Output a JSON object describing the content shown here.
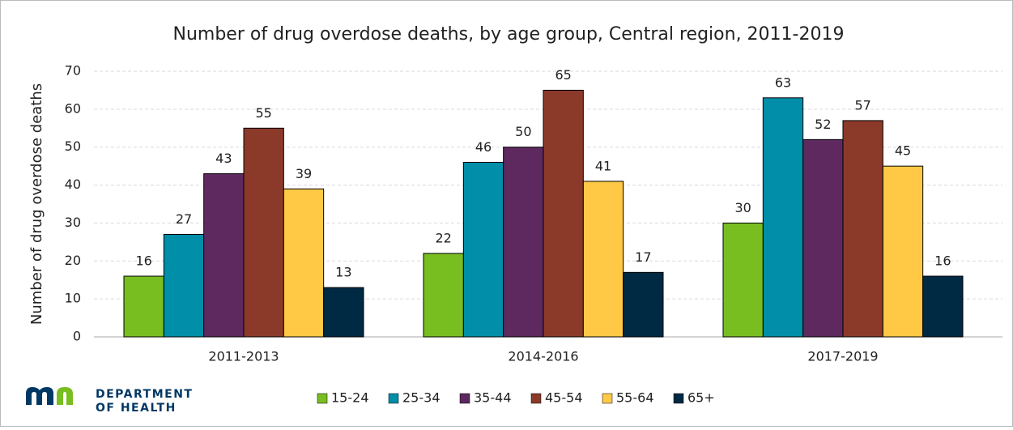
{
  "chart_data": {
    "type": "bar",
    "title": "Number of drug overdose deaths, by age group, Central region, 2011-2019",
    "y_label": "Number of drug overdose deaths",
    "categories": [
      "2011-2013",
      "2014-2016",
      "2017-2019"
    ],
    "series": [
      {
        "name": "15-24",
        "color": "#78be20",
        "values": [
          16,
          22,
          30
        ]
      },
      {
        "name": "25-34",
        "color": "#008ea8",
        "values": [
          27,
          46,
          63
        ]
      },
      {
        "name": "35-44",
        "color": "#5d295f",
        "values": [
          43,
          50,
          52
        ]
      },
      {
        "name": "45-54",
        "color": "#8b3a2a",
        "values": [
          55,
          65,
          57
        ]
      },
      {
        "name": "55-64",
        "color": "#ffc845",
        "values": [
          39,
          41,
          45
        ]
      },
      {
        "name": "65+",
        "color": "#002943",
        "values": [
          13,
          17,
          16
        ]
      }
    ],
    "ylim": [
      0,
      70
    ],
    "yticks": [
      0,
      10,
      20,
      30,
      40,
      50,
      60,
      70
    ],
    "grid": true,
    "legend": "bottom"
  },
  "logo": {
    "line1": "DEPARTMENT",
    "line2": "OF HEALTH"
  }
}
